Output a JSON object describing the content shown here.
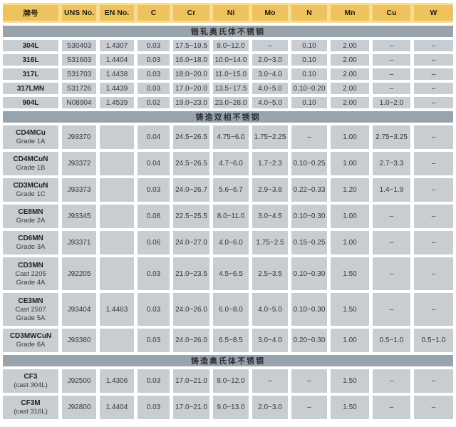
{
  "colors": {
    "header_band_bg": "#f7dd92",
    "header_cell_bg": "#eec25e",
    "header_text": "#231f11",
    "section_bg": "#99a3ac",
    "section_text": "#2b3035",
    "cell_bg": "#c8cdd2",
    "cell_text": "#35383c"
  },
  "table": {
    "columns": [
      "牌号",
      "UNS No.",
      "EN No.",
      "C",
      "Cr",
      "Ni",
      "Mo",
      "N",
      "Mn",
      "Cu",
      "W"
    ],
    "sections": [
      {
        "title": "锻轧奥氏体不锈钢",
        "rows": [
          {
            "name": [
              "304L"
            ],
            "cells": [
              "S30403",
              "1.4307",
              "0.03",
              "17.5~19.5",
              "8.0~12.0",
              "–",
              "0.10",
              "2.00",
              "–",
              "–"
            ]
          },
          {
            "name": [
              "316L"
            ],
            "cells": [
              "S31603",
              "1.4404",
              "0.03",
              "16.0~18.0",
              "10.0~14.0",
              "2.0~3.0",
              "0.10",
              "2.00",
              "–",
              "–"
            ]
          },
          {
            "name": [
              "317L"
            ],
            "cells": [
              "S31703",
              "1.4438",
              "0.03",
              "18.0~20.0",
              "11.0~15.0",
              "3.0~4.0",
              "0.10",
              "2.00",
              "–",
              "–"
            ]
          },
          {
            "name": [
              "317LMN"
            ],
            "cells": [
              "S31726",
              "1.4439",
              "0.03",
              "17.0~20.0",
              "13.5~17.5",
              "4.0~5.0",
              "0.10~0.20",
              "2.00",
              "–",
              "–"
            ]
          },
          {
            "name": [
              "904L"
            ],
            "cells": [
              "N08904",
              "1.4539",
              "0.02",
              "19.0~23.0",
              "23.0~28.0",
              "4.0~5.0",
              "0.10",
              "2.00",
              "1.0~2.0",
              "–"
            ]
          }
        ]
      },
      {
        "title": "铸造双相不锈钢",
        "rows": [
          {
            "name": [
              "CD4MCu",
              "Grade 1A"
            ],
            "cells": [
              "J93370",
              "",
              "0.04",
              "24.5~26.5",
              "4.75~6.0",
              "1.75~2.25",
              "–",
              "1.00",
              "2.75~3.25",
              "–"
            ]
          },
          {
            "name": [
              "CD4MCuN",
              "Grade 1B"
            ],
            "cells": [
              "J93372",
              "",
              "0.04",
              "24.5~26.5",
              "4.7~6.0",
              "1.7~2.3",
              "0.10~0.25",
              "1.00",
              "2.7~3.3",
              "–"
            ]
          },
          {
            "name": [
              "CD3MCuN",
              "Grade 1C"
            ],
            "cells": [
              "J93373",
              "",
              "0.03",
              "24.0~26.7",
              "5.6~6.7",
              "2.9~3.8",
              "0.22~0.33",
              "1.20",
              "1.4~1.9",
              "–"
            ]
          },
          {
            "name": [
              "CE8MN",
              "Grade 2A"
            ],
            "cells": [
              "J93345",
              "",
              "0.08",
              "22.5~25.5",
              "8.0~11.0",
              "3.0~4.5",
              "0.10~0.30",
              "1.00",
              "–",
              "–"
            ]
          },
          {
            "name": [
              "CD6MN",
              "Grade 3A"
            ],
            "cells": [
              "J93371",
              "",
              "0.06",
              "24.0~27.0",
              "4.0~6.0",
              "1.75~2.5",
              "0.15~0.25",
              "1.00",
              "–",
              "–"
            ]
          },
          {
            "name": [
              "CD3MN",
              "Cast 2205",
              "Grade 4A"
            ],
            "cells": [
              "J92205",
              "",
              "0.03",
              "21.0~23.5",
              "4.5~6.5",
              "2.5~3.5",
              "0.10~0.30",
              "1.50",
              "–",
              "–"
            ]
          },
          {
            "name": [
              "CE3MN",
              "Cast 2507",
              "Grade 5A"
            ],
            "cells": [
              "J93404",
              "1.4463",
              "0.03",
              "24.0~26.0",
              "6.0~8.0",
              "4.0~5.0",
              "0.10~0.30",
              "1.50",
              "–",
              "–"
            ]
          },
          {
            "name": [
              "CD3MWCuN",
              "Grade 6A"
            ],
            "cells": [
              "J93380",
              "",
              "0.03",
              "24.0~26.0",
              "6.5~8.5",
              "3.0~4.0",
              "0.20~0.30",
              "1.00",
              "0.5~1.0",
              "0.5~1.0"
            ]
          }
        ]
      },
      {
        "title": "铸造奥氏体不锈钢",
        "rows": [
          {
            "name": [
              "CF3",
              "(cast 304L)"
            ],
            "cells": [
              "J92500",
              "1.4306",
              "0.03",
              "17.0~21.0",
              "8.0~12.0",
              "–",
              "–",
              "1.50",
              "–",
              "–"
            ]
          },
          {
            "name": [
              "CF3M",
              "(cast 316L)"
            ],
            "cells": [
              "J92800",
              "1.4404",
              "0.03",
              "17.0~21.0",
              "9.0~13.0",
              "2.0~3.0",
              "–",
              "1.50",
              "–",
              "–"
            ]
          }
        ]
      }
    ]
  }
}
